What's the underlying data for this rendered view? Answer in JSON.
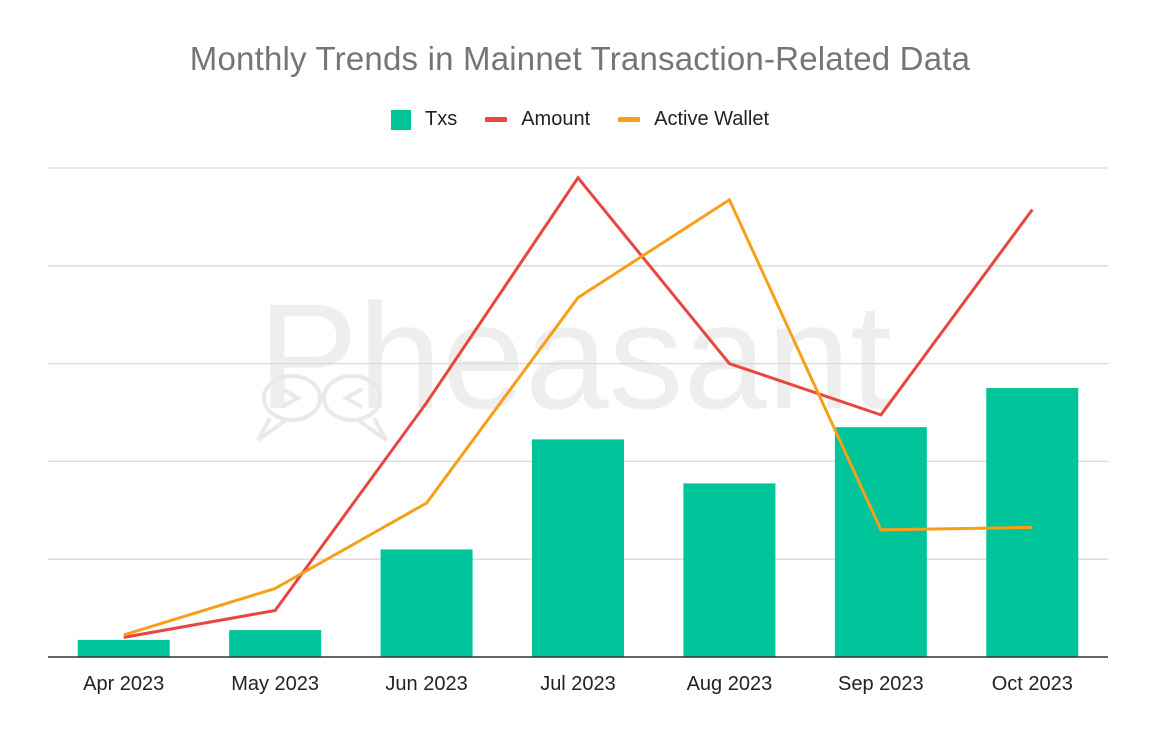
{
  "chart_data": {
    "type": "bar",
    "title": "Monthly Trends in Mainnet Transaction-Related Data",
    "categories": [
      "Apr 2023",
      "May 2023",
      "Jun 2023",
      "Jul 2023",
      "Aug 2023",
      "Sep 2023",
      "Oct 2023"
    ],
    "series": [
      {
        "name": "Txs",
        "type": "bar",
        "color": "#00c49a",
        "values": [
          0.35,
          0.55,
          2.2,
          4.45,
          3.55,
          4.7,
          5.5
        ]
      },
      {
        "name": "Amount",
        "type": "line",
        "color": "#e8473f",
        "values": [
          0.4,
          0.95,
          5.2,
          9.8,
          6.0,
          4.95,
          9.15
        ]
      },
      {
        "name": "Active Wallet",
        "type": "line",
        "color": "#f6a01a",
        "values": [
          0.45,
          1.4,
          3.15,
          7.35,
          9.35,
          2.6,
          2.65
        ]
      }
    ],
    "ylim": [
      0,
      10
    ],
    "grid": true,
    "legend": "top-center",
    "y_tick_labels_shown": false
  },
  "watermark": {
    "text": "Pheasant"
  }
}
